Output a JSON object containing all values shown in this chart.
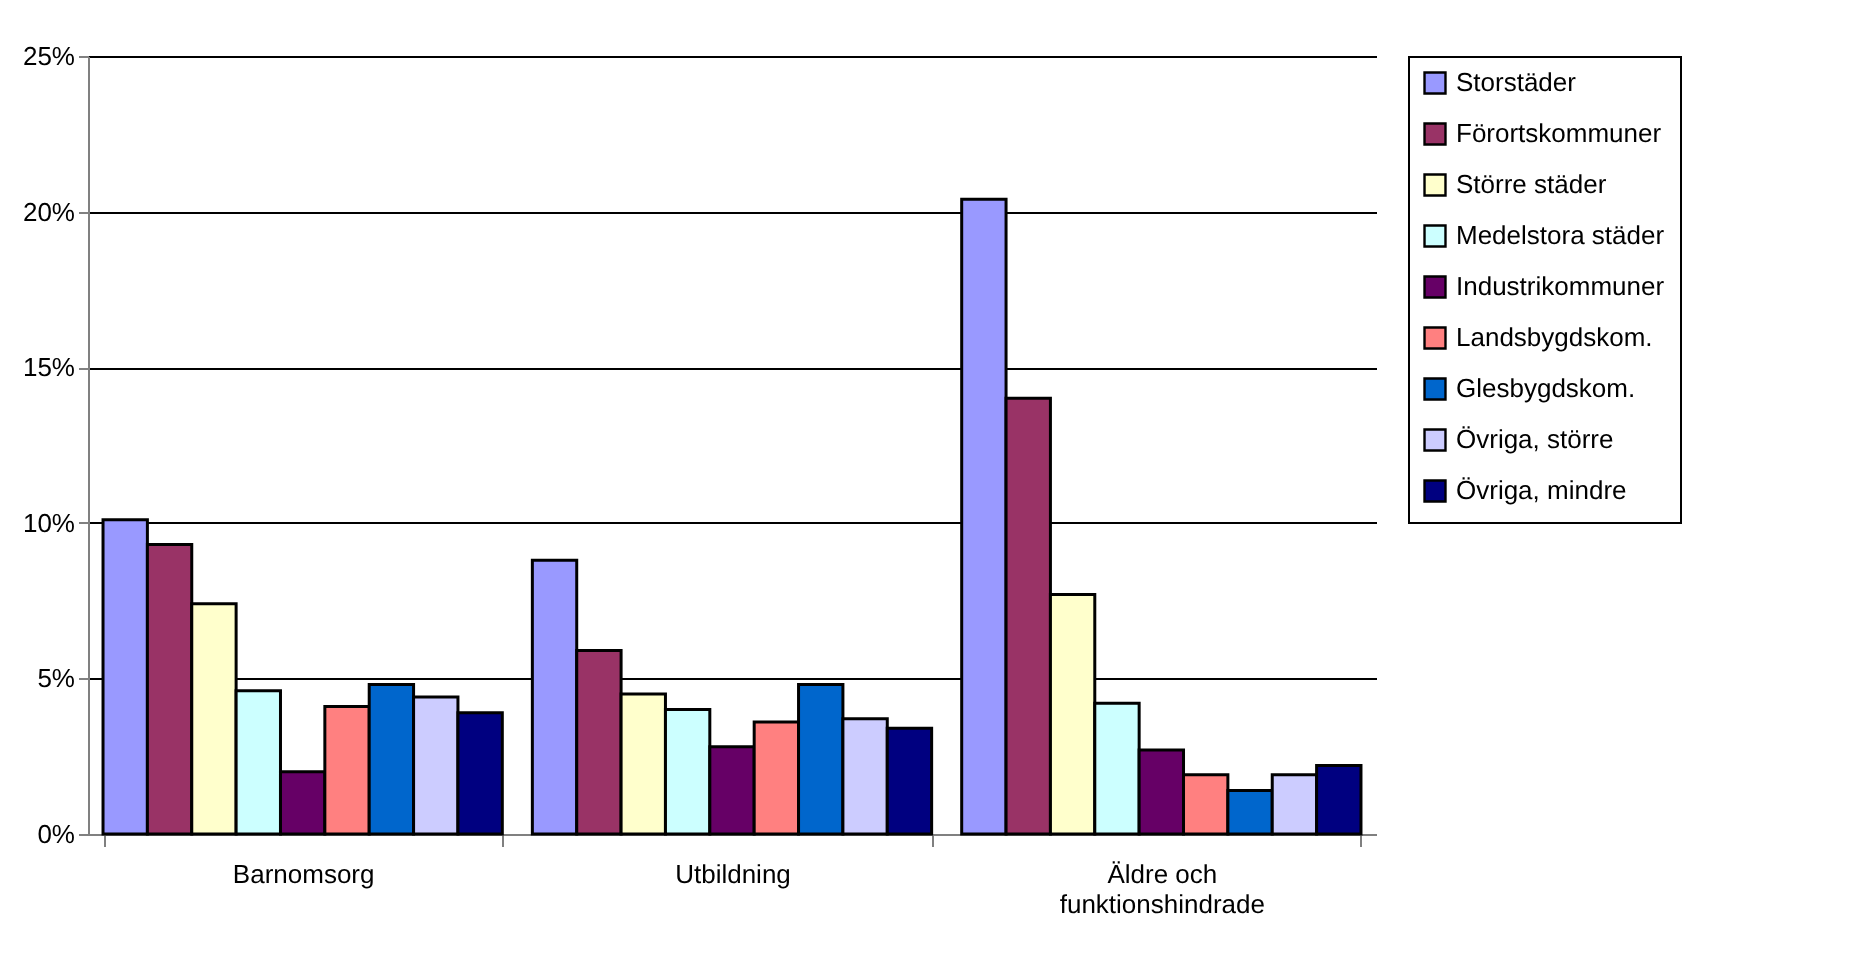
{
  "chart_data": {
    "type": "bar",
    "categories": [
      "Barnomsorg",
      "Utbildning",
      "Äldre och funktionshindrade"
    ],
    "series": [
      {
        "name": "Storstäder",
        "color": "#9999ff",
        "values": [
          10.1,
          8.8,
          20.4
        ]
      },
      {
        "name": "Förortskommuner",
        "color": "#993366",
        "values": [
          9.3,
          5.9,
          14.0
        ]
      },
      {
        "name": "Större städer",
        "color": "#ffffcc",
        "values": [
          7.4,
          4.5,
          7.7
        ]
      },
      {
        "name": "Medelstora städer",
        "color": "#ccffff",
        "values": [
          4.6,
          4.0,
          4.2
        ]
      },
      {
        "name": "Industrikommuner",
        "color": "#660066",
        "values": [
          2.0,
          2.8,
          2.7
        ]
      },
      {
        "name": "Landsbygdskom.",
        "color": "#ff8080",
        "values": [
          4.1,
          3.6,
          1.9
        ]
      },
      {
        "name": "Glesbygdskom.",
        "color": "#0066cc",
        "values": [
          4.8,
          4.8,
          1.4
        ]
      },
      {
        "name": "Övriga, större",
        "color": "#ccccff",
        "values": [
          4.4,
          3.7,
          1.9
        ]
      },
      {
        "name": "Övriga, mindre",
        "color": "#000080",
        "values": [
          3.9,
          3.4,
          2.2
        ]
      }
    ],
    "ylim": [
      0,
      25
    ],
    "yticks": [
      {
        "value": 0,
        "label": "0%"
      },
      {
        "value": 5,
        "label": "5%"
      },
      {
        "value": 10,
        "label": "10%"
      },
      {
        "value": 15,
        "label": "15%"
      },
      {
        "value": 20,
        "label": "20%"
      },
      {
        "value": 25,
        "label": "25%"
      }
    ],
    "grid": "y",
    "legend": "right"
  }
}
